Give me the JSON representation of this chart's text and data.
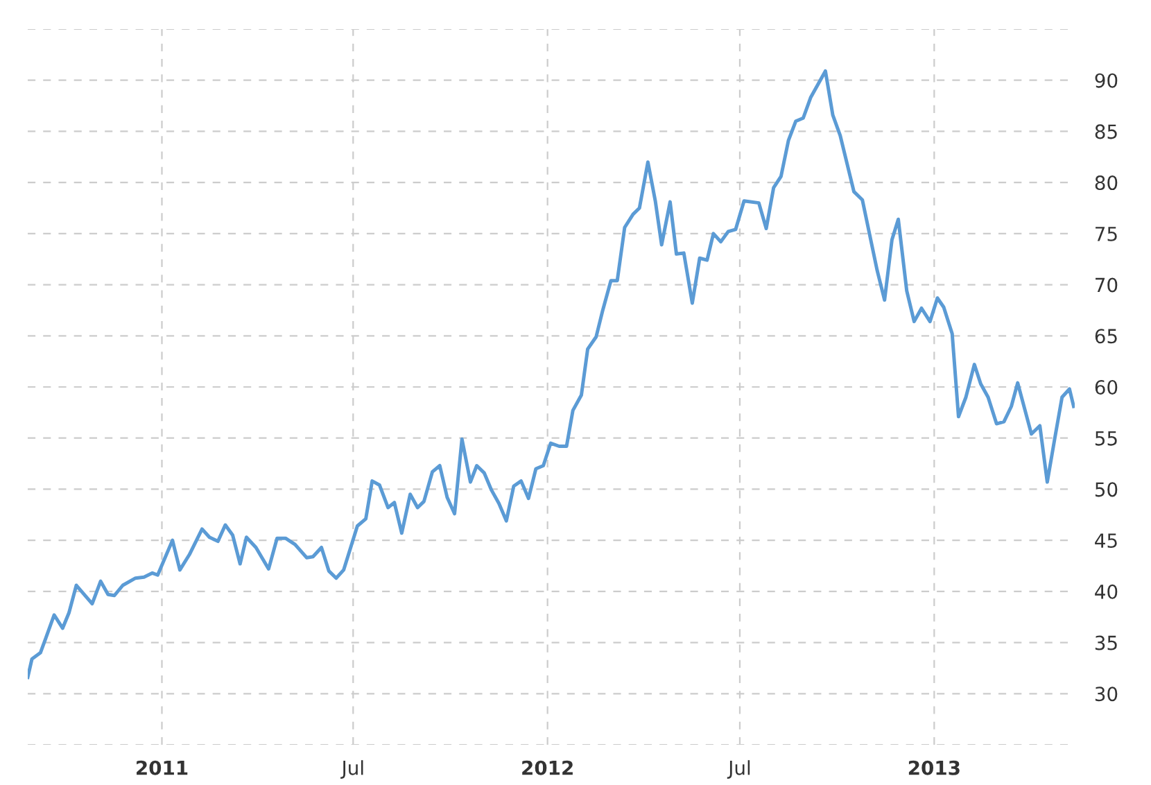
{
  "chart_data": {
    "type": "line",
    "grid": true,
    "line_style": "solid",
    "marker": "none",
    "xlim": [
      "2010-08-27",
      "2013-05-14"
    ],
    "xticks": [
      {
        "value": "2011-01-01",
        "label": "2011"
      },
      {
        "value": "2011-07-01",
        "label": "Jul"
      },
      {
        "value": "2012-01-01",
        "label": "2012"
      },
      {
        "value": "2012-07-01",
        "label": "Jul"
      },
      {
        "value": "2013-01-01",
        "label": "2013"
      }
    ],
    "ylim": [
      25,
      95
    ],
    "yticks": [
      {
        "value": 25,
        "label": null
      },
      30,
      35,
      40,
      45,
      50,
      55,
      60,
      65,
      70,
      75,
      80,
      85,
      90,
      {
        "value": 95,
        "label": null
      }
    ],
    "x": [
      "2010-08-27",
      "2010-08-31",
      "2010-09-08",
      "2010-09-13",
      "2010-09-21",
      "2010-09-29",
      "2010-10-05",
      "2010-10-12",
      "2010-10-27",
      "2010-11-04",
      "2010-11-11",
      "2010-11-17",
      "2010-11-25",
      "2010-12-07",
      "2010-12-15",
      "2010-12-23",
      "2010-12-28",
      "2011-01-11",
      "2011-01-18",
      "2011-01-27",
      "2011-02-08",
      "2011-02-15",
      "2011-02-23",
      "2011-03-02",
      "2011-03-09",
      "2011-03-16",
      "2011-03-22",
      "2011-03-31",
      "2011-04-12",
      "2011-04-20",
      "2011-04-28",
      "2011-05-07",
      "2011-05-18",
      "2011-05-24",
      "2011-06-01",
      "2011-06-08",
      "2011-06-15",
      "2011-06-22",
      "2011-07-05",
      "2011-07-13",
      "2011-07-19",
      "2011-07-26",
      "2011-08-03",
      "2011-08-09",
      "2011-08-16",
      "2011-08-24",
      "2011-08-31",
      "2011-09-06",
      "2011-09-14",
      "2011-09-21",
      "2011-09-28",
      "2011-10-05",
      "2011-10-12",
      "2011-10-20",
      "2011-10-26",
      "2011-11-02",
      "2011-11-09",
      "2011-11-16",
      "2011-11-23",
      "2011-11-30",
      "2011-12-07",
      "2011-12-14",
      "2011-12-21",
      "2011-12-28",
      "2012-01-04",
      "2012-01-12",
      "2012-01-19",
      "2012-01-25",
      "2012-02-02",
      "2012-02-08",
      "2012-02-16",
      "2012-02-22",
      "2012-03-01",
      "2012-03-07",
      "2012-03-14",
      "2012-03-22",
      "2012-03-28",
      "2012-04-05",
      "2012-04-12",
      "2012-04-18",
      "2012-04-26",
      "2012-05-02",
      "2012-05-09",
      "2012-05-17",
      "2012-05-24",
      "2012-05-31",
      "2012-06-06",
      "2012-06-13",
      "2012-06-20",
      "2012-06-27",
      "2012-07-05",
      "2012-07-19",
      "2012-07-26",
      "2012-08-02",
      "2012-08-09",
      "2012-08-16",
      "2012-08-23",
      "2012-08-30",
      "2012-09-06",
      "2012-09-20",
      "2012-09-27",
      "2012-10-04",
      "2012-10-17",
      "2012-10-25",
      "2012-11-08",
      "2012-11-15",
      "2012-11-22",
      "2012-11-28",
      "2012-12-06",
      "2012-12-13",
      "2012-12-20",
      "2012-12-28",
      "2013-01-04",
      "2013-01-10",
      "2013-01-18",
      "2013-01-24",
      "2013-01-31",
      "2013-02-08",
      "2013-02-14",
      "2013-02-21",
      "2013-03-01",
      "2013-03-08",
      "2013-03-15",
      "2013-03-21",
      "2013-04-03",
      "2013-04-11",
      "2013-04-18",
      "2013-04-25",
      "2013-05-02",
      "2013-05-09",
      "2013-05-13"
    ],
    "series": [
      {
        "color": "#5b9bd5",
        "values": [
          31.6,
          33.4,
          34.0,
          35.4,
          37.7,
          36.4,
          37.9,
          40.6,
          38.8,
          41.0,
          39.7,
          39.6,
          40.6,
          41.3,
          41.4,
          41.8,
          41.6,
          45.0,
          42.1,
          43.6,
          46.1,
          45.3,
          44.9,
          46.5,
          45.5,
          42.7,
          45.3,
          44.3,
          42.2,
          45.2,
          45.2,
          44.6,
          43.3,
          43.4,
          44.3,
          42.0,
          41.3,
          42.1,
          46.4,
          47.1,
          50.8,
          50.4,
          48.2,
          48.7,
          45.7,
          49.5,
          48.2,
          48.8,
          51.7,
          52.3,
          49.2,
          47.6,
          54.9,
          50.7,
          52.3,
          51.6,
          49.9,
          48.6,
          46.9,
          50.3,
          50.8,
          49.1,
          52.0,
          52.3,
          54.5,
          54.2,
          54.2,
          57.7,
          59.2,
          63.7,
          64.9,
          67.4,
          70.4,
          70.4,
          75.6,
          76.9,
          77.5,
          82.0,
          78.2,
          73.9,
          78.1,
          73.0,
          73.1,
          68.2,
          72.6,
          72.4,
          75.0,
          74.2,
          75.2,
          75.4,
          78.2,
          78.0,
          75.5,
          79.5,
          80.6,
          84.1,
          86.0,
          86.3,
          88.3,
          90.9,
          86.6,
          84.6,
          79.1,
          78.3,
          71.4,
          68.5,
          74.4,
          76.4,
          69.4,
          66.4,
          67.7,
          66.4,
          68.7,
          67.8,
          65.2,
          57.1,
          59.0,
          62.2,
          60.3,
          59.0,
          56.4,
          56.6,
          58.1,
          60.4,
          55.4,
          56.2,
          50.7,
          54.9,
          59.0,
          59.8,
          58.1
        ]
      }
    ]
  }
}
